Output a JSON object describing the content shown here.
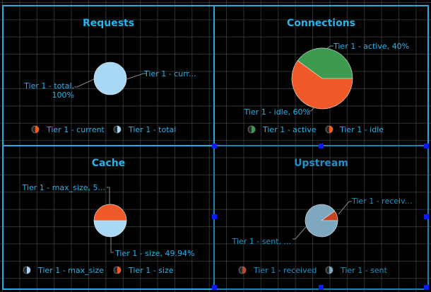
{
  "colors": {
    "accent": "#22b5ee",
    "accent_dim": "#1c93c8",
    "border": "#2aa8e0",
    "handle": "#0a1cff"
  },
  "panels": [
    {
      "title": "Requests",
      "callouts": [
        "Tier 1 - curr...",
        "Tier 1 - total,",
        "100%"
      ],
      "legend": [
        "Tier 1 - current",
        "Tier 1 - total"
      ]
    },
    {
      "title": "Connections",
      "callouts": [
        "Tier 1 - active, 40%",
        "Tier 1 - idle, 60%"
      ],
      "legend": [
        "Tier 1 - active",
        "Tier 1 - idle"
      ]
    },
    {
      "title": "Cache",
      "callouts": [
        "Tier 1 - max_size, 5...",
        "Tier 1 - size, 49.94%"
      ],
      "legend": [
        "Tier 1 - max_size",
        "Tier 1 - size"
      ]
    },
    {
      "title": "Upstream",
      "callouts": [
        "Tier 1 - receiv...",
        "Tier 1 - sent, ..."
      ],
      "legend": [
        "Tier 1 - received",
        "Tier 1 - sent"
      ]
    }
  ],
  "chart_data": [
    {
      "type": "pie",
      "title": "Requests",
      "slices": [
        {
          "name": "Tier 1 - current",
          "value": 0,
          "color": "#f05a28"
        },
        {
          "name": "Tier 1 - total",
          "value": 100,
          "color": "#a9d8f5"
        }
      ]
    },
    {
      "type": "pie",
      "title": "Connections",
      "slices": [
        {
          "name": "Tier 1 - active",
          "value": 40,
          "color": "#3d9a4f"
        },
        {
          "name": "Tier 1 - idle",
          "value": 60,
          "color": "#f05a28"
        }
      ]
    },
    {
      "type": "pie",
      "title": "Cache",
      "slices": [
        {
          "name": "Tier 1 - max_size",
          "value": 50.06,
          "color": "#a9d8f5"
        },
        {
          "name": "Tier 1 - size",
          "value": 49.94,
          "color": "#f05a28"
        }
      ]
    },
    {
      "type": "pie",
      "title": "Upstream",
      "slices": [
        {
          "name": "Tier 1 - received",
          "value": 10,
          "color": "#c4451d"
        },
        {
          "name": "Tier 1 - sent",
          "value": 90,
          "color": "#7ea7c0"
        }
      ]
    }
  ]
}
